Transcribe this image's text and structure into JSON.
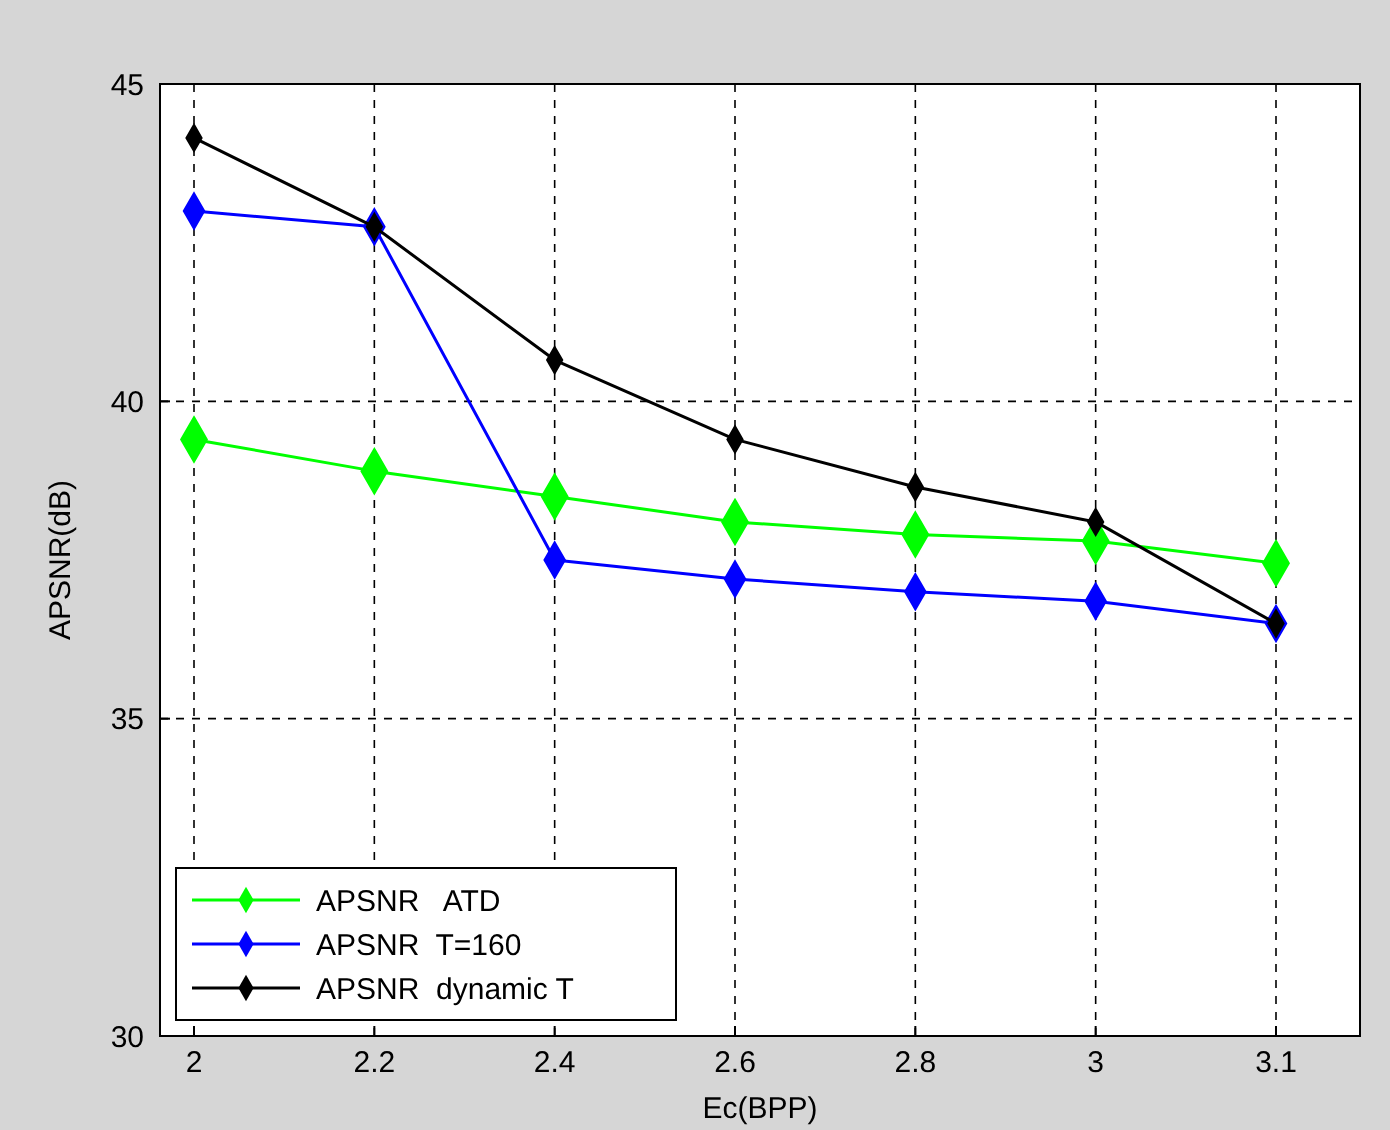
{
  "chart_data": {
    "type": "line",
    "xlabel": "Ec(BPP)",
    "ylabel": "APSNR(dB)",
    "categories": [
      "2",
      "2.2",
      "2.4",
      "2.6",
      "2.8",
      "3",
      "3.1"
    ],
    "series": [
      {
        "name": "APSNR   ATD",
        "color": "#00ff00",
        "values": [
          39.4,
          38.9,
          38.5,
          38.1,
          37.9,
          37.8,
          37.45
        ]
      },
      {
        "name": "APSNR  T=160",
        "color": "#0000ff",
        "values": [
          43.0,
          42.75,
          37.5,
          37.2,
          37.0,
          36.85,
          36.5
        ]
      },
      {
        "name": "APSNR  dynamic T",
        "color": "#000000",
        "values": [
          44.15,
          42.75,
          40.65,
          39.4,
          38.65,
          38.1,
          36.5
        ]
      }
    ],
    "ylim": [
      30,
      45
    ],
    "yticks": [
      30,
      35,
      40,
      45
    ],
    "grid": true,
    "legend": "bottom left",
    "marker": "diamond",
    "line_style": "solid"
  }
}
